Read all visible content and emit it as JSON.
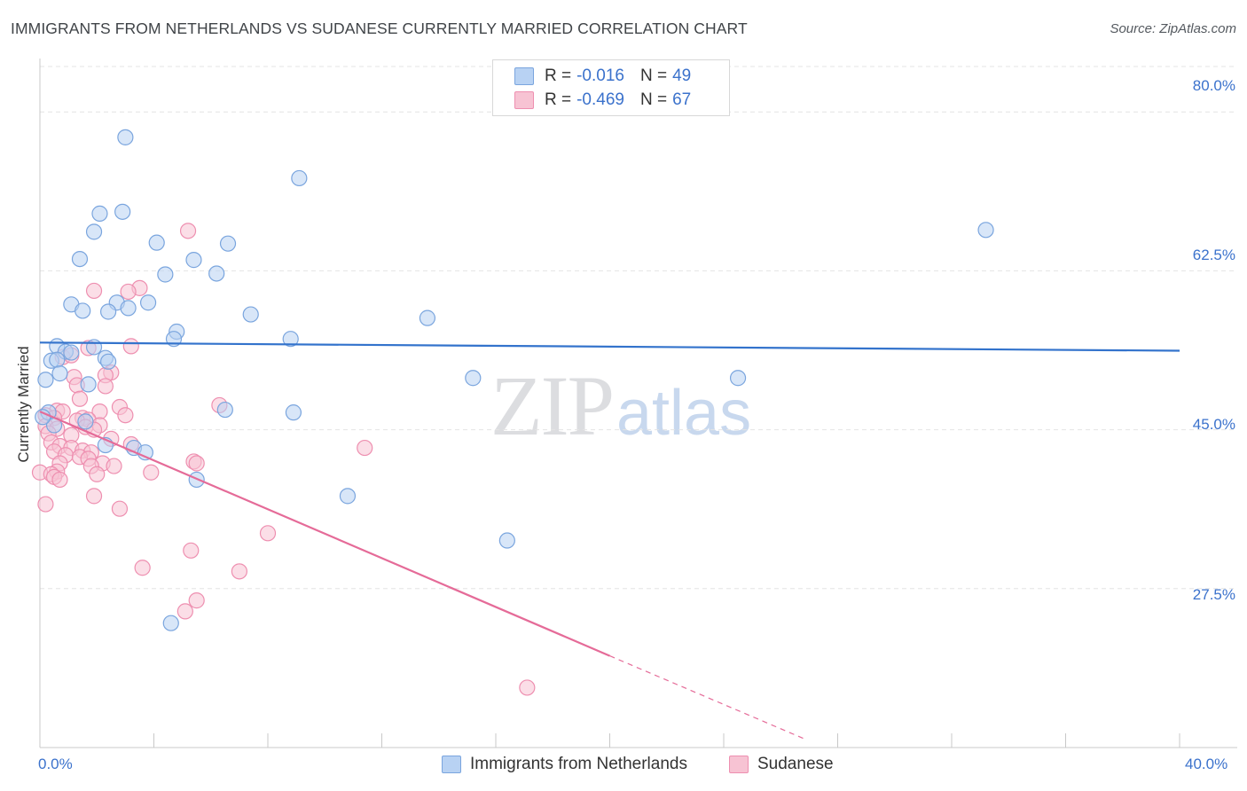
{
  "header": {
    "title": "IMMIGRANTS FROM NETHERLANDS VS SUDANESE CURRENTLY MARRIED CORRELATION CHART",
    "source": "Source: ZipAtlas.com"
  },
  "legend": {
    "row1": {
      "r_label": "R =",
      "r_value": "-0.016",
      "n_label": "N =",
      "n_value": "49"
    },
    "row2": {
      "r_label": "R =",
      "r_value": "-0.469",
      "n_label": "N =",
      "n_value": "67"
    }
  },
  "watermark": {
    "zip": "ZIP",
    "atlas": "atlas"
  },
  "colors": {
    "blue_fill": "#b8d2f3",
    "blue_stroke": "#7aa5de",
    "blue_line": "#3373cc",
    "pink_fill": "#f7c3d3",
    "pink_stroke": "#ee8fb0",
    "pink_line": "#e56b98",
    "grid": "#e4e4e4",
    "tick_text": "#3b72cc"
  },
  "chart_data": {
    "type": "scatter",
    "title": "IMMIGRANTS FROM NETHERLANDS VS SUDANESE CURRENTLY MARRIED CORRELATION CHART",
    "xlabel": "",
    "ylabel": "Currently Married",
    "xlim": [
      0,
      40
    ],
    "ylim": [
      10,
      85
    ],
    "x_tick_labels": [
      "0.0%",
      "40.0%"
    ],
    "y_ticks": [
      27.5,
      45.0,
      62.5,
      80.0
    ],
    "y_tick_labels": [
      "27.5%",
      "45.0%",
      "62.5%",
      "80.0%"
    ],
    "grid": true,
    "legend_position": "bottom-center",
    "series": [
      {
        "name": "Immigrants from Netherlands",
        "r": -0.016,
        "n": 49,
        "trend": {
          "x": [
            0,
            40
          ],
          "y": [
            54.6,
            53.7
          ]
        },
        "points": [
          [
            3.0,
            77.2
          ],
          [
            9.1,
            72.7
          ],
          [
            2.1,
            68.8
          ],
          [
            2.9,
            69.0
          ],
          [
            1.9,
            66.8
          ],
          [
            4.1,
            65.6
          ],
          [
            6.6,
            65.5
          ],
          [
            1.4,
            63.8
          ],
          [
            5.4,
            63.7
          ],
          [
            4.4,
            62.1
          ],
          [
            6.2,
            62.2
          ],
          [
            33.2,
            67.0
          ],
          [
            1.1,
            58.8
          ],
          [
            2.7,
            59.0
          ],
          [
            3.1,
            58.4
          ],
          [
            3.8,
            59.0
          ],
          [
            1.5,
            58.1
          ],
          [
            2.4,
            58.0
          ],
          [
            7.4,
            57.7
          ],
          [
            13.6,
            57.3
          ],
          [
            4.8,
            55.8
          ],
          [
            4.7,
            55.0
          ],
          [
            8.8,
            55.0
          ],
          [
            0.6,
            54.2
          ],
          [
            1.9,
            54.1
          ],
          [
            0.9,
            53.6
          ],
          [
            1.1,
            53.5
          ],
          [
            2.3,
            52.9
          ],
          [
            2.4,
            52.5
          ],
          [
            0.4,
            52.6
          ],
          [
            0.6,
            52.7
          ],
          [
            0.7,
            51.2
          ],
          [
            0.2,
            50.5
          ],
          [
            15.2,
            50.7
          ],
          [
            24.5,
            50.7
          ],
          [
            1.7,
            50.0
          ],
          [
            6.5,
            47.2
          ],
          [
            8.9,
            46.9
          ],
          [
            0.3,
            46.9
          ],
          [
            0.5,
            45.5
          ],
          [
            1.6,
            45.9
          ],
          [
            2.3,
            43.3
          ],
          [
            3.3,
            43.0
          ],
          [
            3.7,
            42.5
          ],
          [
            5.5,
            39.5
          ],
          [
            10.8,
            37.7
          ],
          [
            16.4,
            32.8
          ],
          [
            4.6,
            23.7
          ],
          [
            0.1,
            46.4
          ]
        ]
      },
      {
        "name": "Sudanese",
        "r": -0.469,
        "n": 67,
        "trend": {
          "x": [
            0,
            20.0
          ],
          "y": [
            47.0,
            20.1
          ]
        },
        "trend_dashed": {
          "x": [
            20.0,
            26.8
          ],
          "y": [
            20.1,
            11.0
          ]
        },
        "points": [
          [
            5.2,
            66.9
          ],
          [
            3.5,
            60.6
          ],
          [
            1.9,
            60.3
          ],
          [
            3.1,
            60.2
          ],
          [
            3.2,
            54.2
          ],
          [
            1.7,
            54.0
          ],
          [
            0.8,
            53.0
          ],
          [
            1.1,
            53.2
          ],
          [
            2.5,
            51.3
          ],
          [
            1.2,
            50.8
          ],
          [
            2.3,
            51.0
          ],
          [
            1.3,
            49.9
          ],
          [
            2.3,
            49.8
          ],
          [
            6.3,
            47.7
          ],
          [
            2.8,
            47.5
          ],
          [
            1.4,
            48.4
          ],
          [
            0.6,
            47.1
          ],
          [
            0.8,
            47.0
          ],
          [
            2.1,
            47.0
          ],
          [
            3.0,
            46.6
          ],
          [
            0.2,
            46.6
          ],
          [
            0.5,
            46.3
          ],
          [
            1.5,
            46.3
          ],
          [
            1.7,
            46.1
          ],
          [
            1.3,
            46.0
          ],
          [
            1.6,
            45.3
          ],
          [
            2.1,
            45.5
          ],
          [
            0.2,
            45.4
          ],
          [
            0.6,
            45.1
          ],
          [
            1.9,
            45.0
          ],
          [
            0.3,
            44.6
          ],
          [
            1.1,
            44.4
          ],
          [
            2.5,
            44.0
          ],
          [
            0.4,
            43.6
          ],
          [
            0.7,
            43.2
          ],
          [
            3.2,
            43.4
          ],
          [
            1.1,
            43.0
          ],
          [
            1.5,
            42.7
          ],
          [
            11.4,
            43.0
          ],
          [
            0.5,
            42.6
          ],
          [
            1.8,
            42.5
          ],
          [
            0.9,
            42.2
          ],
          [
            1.4,
            42.0
          ],
          [
            1.7,
            41.8
          ],
          [
            2.2,
            41.3
          ],
          [
            0.7,
            41.3
          ],
          [
            5.4,
            41.5
          ],
          [
            5.5,
            41.3
          ],
          [
            1.8,
            41.0
          ],
          [
            2.6,
            41.0
          ],
          [
            0.6,
            40.4
          ],
          [
            2.0,
            40.1
          ],
          [
            0.0,
            40.3
          ],
          [
            0.4,
            40.1
          ],
          [
            0.5,
            39.8
          ],
          [
            0.7,
            39.5
          ],
          [
            3.9,
            40.3
          ],
          [
            1.9,
            37.7
          ],
          [
            2.8,
            36.3
          ],
          [
            0.2,
            36.8
          ],
          [
            8.0,
            33.6
          ],
          [
            3.6,
            29.8
          ],
          [
            5.3,
            31.7
          ],
          [
            7.0,
            29.4
          ],
          [
            5.5,
            26.2
          ],
          [
            5.1,
            25.0
          ],
          [
            17.1,
            16.6
          ]
        ]
      }
    ]
  }
}
